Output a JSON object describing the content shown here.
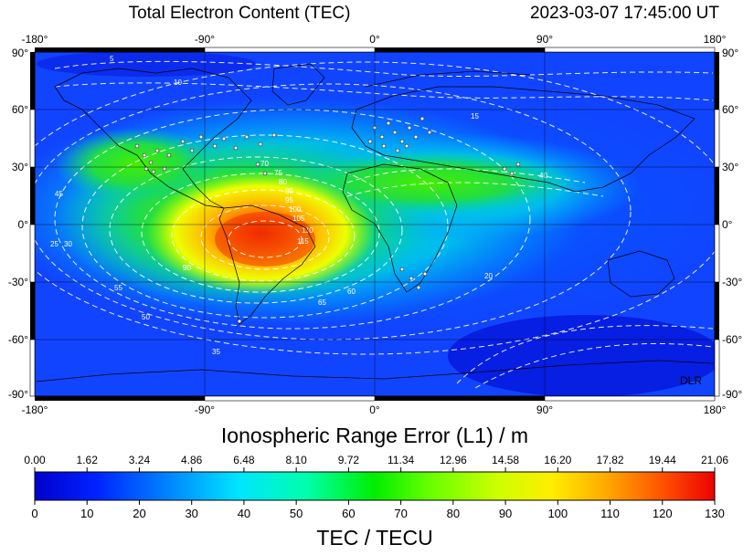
{
  "header": {
    "title": "Total Electron Content (TEC)",
    "timestamp": "2023-03-07  17:45:00 UT"
  },
  "watermark": "DLR",
  "chart_data": {
    "type": "heatmap",
    "x_ticks": [
      "-180°",
      "-90°",
      "0°",
      "90°",
      "180°"
    ],
    "y_ticks": [
      "90°",
      "60°",
      "30°",
      "0°",
      "-30°",
      "-60°",
      "-90°"
    ],
    "x_range": [
      -180,
      180
    ],
    "y_range": [
      -90,
      90
    ],
    "grid": true,
    "contour_interval_tecu": 5,
    "contour_labels": [
      "5",
      "10",
      "15",
      "20",
      "25",
      "30",
      "35",
      "40",
      "45",
      "50",
      "55",
      "60",
      "65",
      "70",
      "75",
      "80",
      "85",
      "90",
      "95",
      "100",
      "105",
      "110",
      "115"
    ],
    "tec_max_location": {
      "lon": -75,
      "lat": -10,
      "value": 120
    },
    "colorbar": {
      "range_error_label": "Ionospheric Range Error (L1) / m",
      "range_error_ticks": [
        "0.00",
        "1.62",
        "3.24",
        "4.86",
        "6.48",
        "8.10",
        "9.72",
        "11.34",
        "12.96",
        "14.58",
        "16.20",
        "17.82",
        "19.44",
        "21.06"
      ],
      "tec_label": "TEC / TECU",
      "tec_ticks": [
        "0",
        "10",
        "20",
        "30",
        "40",
        "50",
        "60",
        "70",
        "80",
        "90",
        "100",
        "110",
        "120",
        "130"
      ],
      "range": [
        0,
        130
      ],
      "colors": [
        "#0000cc",
        "#0033ff",
        "#0099ff",
        "#00e5ff",
        "#00ffaa",
        "#00ee00",
        "#55ff00",
        "#ccff00",
        "#ffee00",
        "#ff9900",
        "#ff4400",
        "#ee0000"
      ]
    }
  }
}
